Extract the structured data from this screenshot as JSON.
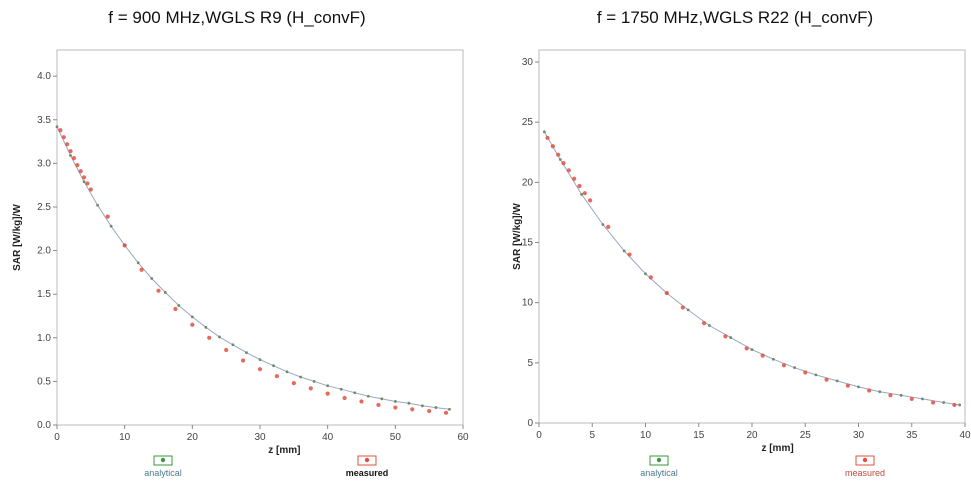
{
  "chart_data": [
    {
      "type": "scatter",
      "title": "f = 900 MHz,WGLS R9 (H_convF)",
      "xlabel": "z [mm]",
      "ylabel": "SAR [W/kg]/W",
      "xlim": [
        0,
        60
      ],
      "ylim": [
        0,
        4.3
      ],
      "xticks": [
        "0",
        "10",
        "20",
        "30",
        "40",
        "50",
        "60"
      ],
      "yticks": [
        "0.0",
        "0.5",
        "1.0",
        "1.5",
        "2.0",
        "2.5",
        "3.0",
        "3.5",
        "4.0"
      ],
      "grid": false,
      "legend": "bottom",
      "series": [
        {
          "name": "analytical",
          "color": "#3a9a3a",
          "x": [
            0,
            2,
            4,
            6,
            8,
            10,
            12,
            14,
            16,
            18,
            20,
            22,
            24,
            26,
            28,
            30,
            32,
            34,
            36,
            38,
            40,
            42,
            44,
            46,
            48,
            50,
            52,
            54,
            56,
            58
          ],
          "y": [
            3.42,
            3.09,
            2.79,
            2.52,
            2.28,
            2.06,
            1.86,
            1.68,
            1.52,
            1.37,
            1.24,
            1.12,
            1.01,
            0.92,
            0.83,
            0.75,
            0.68,
            0.61,
            0.55,
            0.5,
            0.45,
            0.41,
            0.37,
            0.33,
            0.3,
            0.27,
            0.25,
            0.22,
            0.2,
            0.18
          ]
        },
        {
          "name": "measured",
          "color": "#e05040",
          "x": [
            0.5,
            1,
            1.5,
            2,
            2.5,
            3,
            3.5,
            4,
            4.5,
            5,
            7.5,
            10,
            12.5,
            15,
            17.5,
            20,
            22.5,
            25,
            27.5,
            30,
            32.5,
            35,
            37.5,
            40,
            42.5,
            45,
            47.5,
            50,
            52.5,
            55,
            57.5
          ],
          "y": [
            3.38,
            3.3,
            3.22,
            3.14,
            3.06,
            2.98,
            2.91,
            2.84,
            2.77,
            2.7,
            2.39,
            2.06,
            1.78,
            1.54,
            1.33,
            1.15,
            1.0,
            0.86,
            0.74,
            0.64,
            0.56,
            0.48,
            0.42,
            0.36,
            0.31,
            0.27,
            0.23,
            0.2,
            0.18,
            0.16,
            0.14
          ]
        }
      ]
    },
    {
      "type": "scatter",
      "title": "f = 1750 MHz,WGLS R22 (H_convF)",
      "xlabel": "z [mm]",
      "ylabel": "SAR [W/kg]/W",
      "xlim": [
        0,
        40
      ],
      "ylim": [
        0,
        31
      ],
      "xticks": [
        "0",
        "5",
        "10",
        "15",
        "20",
        "25",
        "30",
        "35",
        "40"
      ],
      "yticks": [
        "0",
        "5",
        "10",
        "15",
        "20",
        "25",
        "30"
      ],
      "grid": false,
      "legend": "bottom",
      "series": [
        {
          "name": "analytical",
          "color": "#3a9a3a",
          "x": [
            0.5,
            2,
            4,
            6,
            8,
            10,
            12,
            14,
            16,
            18,
            20,
            22,
            24,
            26,
            28,
            30,
            32,
            34,
            36,
            38,
            39.5
          ],
          "y": [
            24.2,
            21.9,
            19.0,
            16.5,
            14.3,
            12.4,
            10.8,
            9.4,
            8.1,
            7.1,
            6.1,
            5.3,
            4.6,
            4.0,
            3.5,
            3.0,
            2.6,
            2.3,
            2.0,
            1.7,
            1.5
          ]
        },
        {
          "name": "measured",
          "color": "#e05040",
          "x": [
            0.8,
            1.3,
            1.8,
            2.3,
            2.8,
            3.3,
            3.8,
            4.3,
            4.8,
            6.5,
            8.5,
            10.5,
            12,
            13.5,
            15.5,
            17.5,
            19.5,
            21,
            23,
            25,
            27,
            29,
            31,
            33,
            35,
            37,
            39
          ],
          "y": [
            23.7,
            23.0,
            22.3,
            21.6,
            21.0,
            20.3,
            19.7,
            19.1,
            18.5,
            16.3,
            14.0,
            12.1,
            10.8,
            9.6,
            8.3,
            7.2,
            6.2,
            5.6,
            4.8,
            4.2,
            3.6,
            3.1,
            2.7,
            2.3,
            2.0,
            1.7,
            1.5
          ]
        }
      ]
    }
  ]
}
